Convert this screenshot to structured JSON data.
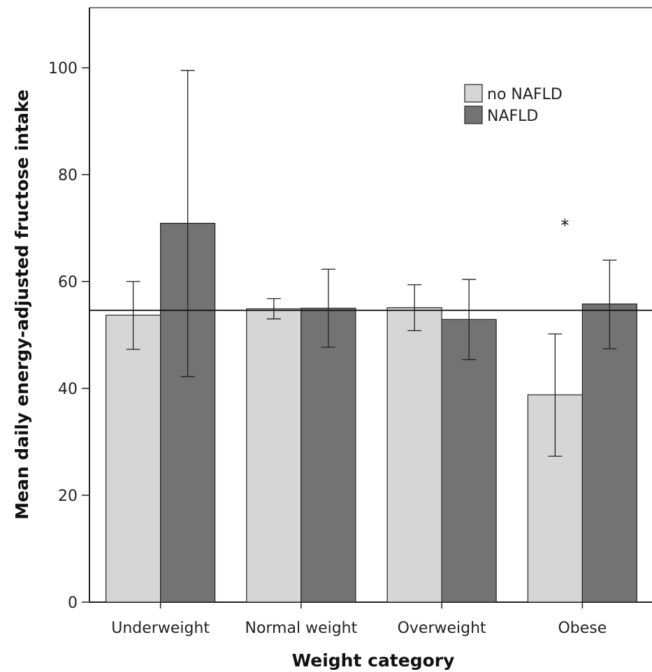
{
  "chart_data": {
    "type": "bar",
    "title": "",
    "xlabel": "Weight category",
    "ylabel": "Mean daily energy-adjusted fructose intake",
    "ylim": [
      0,
      110
    ],
    "yticks": [
      0,
      20,
      40,
      60,
      80,
      100
    ],
    "categories": [
      "Underweight",
      "Normal weight",
      "Overweight",
      "Obese"
    ],
    "series": [
      {
        "name": "no NAFLD",
        "color": "#d6d6d6",
        "values": [
          53.7,
          54.9,
          55.1,
          38.8
        ],
        "error_low": [
          47.3,
          53.0,
          50.8,
          27.3
        ],
        "error_high": [
          60.0,
          56.8,
          59.4,
          50.2
        ]
      },
      {
        "name": "NAFLD",
        "color": "#737373",
        "values": [
          70.9,
          55.0,
          52.9,
          55.8
        ],
        "error_low": [
          42.2,
          47.7,
          45.4,
          47.4
        ],
        "error_high": [
          99.5,
          62.3,
          60.4,
          64.0
        ]
      }
    ],
    "reference_line": 54.6,
    "annotations": [
      {
        "text": "*",
        "category": "Obese",
        "y": 71
      }
    ],
    "legend_position": "top-right",
    "grid": false
  }
}
